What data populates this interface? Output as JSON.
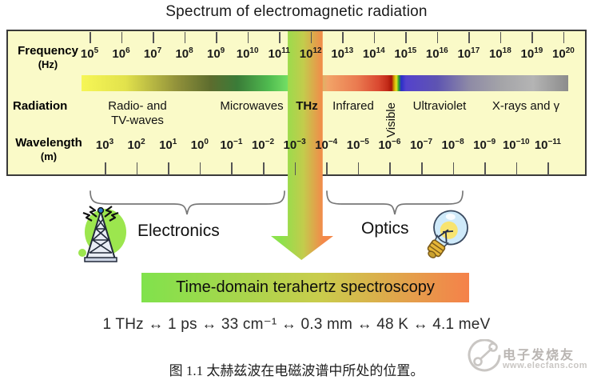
{
  "title": "Spectrum of electromagnetic radiation",
  "spectrum": {
    "frequency_axis": {
      "label": "Frequency",
      "unit": "(Hz)",
      "base": "10",
      "exponents": [
        "5",
        "6",
        "7",
        "8",
        "9",
        "10",
        "11",
        "12",
        "13",
        "14",
        "15",
        "16",
        "17",
        "18",
        "19",
        "20"
      ]
    },
    "wavelength_axis": {
      "label": "Wavelength",
      "unit": "(m)",
      "base": "10",
      "exponents": [
        "3",
        "2",
        "1",
        "0",
        "−1",
        "−2",
        "−3",
        "−4",
        "−5",
        "−6",
        "−7",
        "−8",
        "−9",
        "−10",
        "−11"
      ]
    },
    "radiation_row_label": "Radiation",
    "bands": [
      {
        "label": "Radio- and\nTV-waves",
        "bold": false,
        "vertical": false
      },
      {
        "label": "Microwaves",
        "bold": false,
        "vertical": false
      },
      {
        "label": "THz",
        "bold": true,
        "vertical": false
      },
      {
        "label": "Infrared",
        "bold": false,
        "vertical": false
      },
      {
        "label": "Visible",
        "bold": false,
        "vertical": true
      },
      {
        "label": "Ultraviolet",
        "bold": false,
        "vertical": false
      },
      {
        "label": "X-rays and γ",
        "bold": false,
        "vertical": false
      }
    ]
  },
  "groups": {
    "electronics_label": "Electronics",
    "optics_label": "Optics"
  },
  "banner_label": "Time-domain terahertz spectroscopy",
  "equivalence_line": "1 THz ↔ 1 ps ↔ 33 cm⁻¹ ↔ 0.3 mm ↔ 48 K ↔ 4.1 meV",
  "caption": "图 1.1 太赫兹波在电磁波谱中所处的位置。",
  "watermark": {
    "brand": "电子发烧友",
    "url": "www.elecfans.com"
  },
  "colors": {
    "box_background": "#fafac8",
    "arrow_green": "#8ce24c",
    "arrow_orange": "#f4884a",
    "brace_gray": "#777777"
  }
}
